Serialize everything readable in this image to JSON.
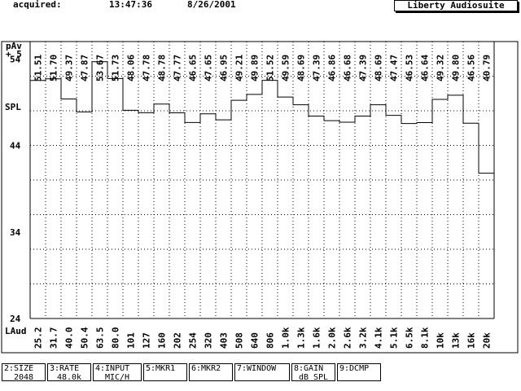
{
  "header": {
    "acquired_label": "acquired:",
    "time": "13:47:36",
    "date": "8/26/2001",
    "app_name": "Liberty Audiosuite"
  },
  "chart_data": {
    "type": "bar",
    "style": "step",
    "top_left_label": "pAv",
    "top_left_sub": "+ 5",
    "ylabel": "SPL",
    "xaxis_label": "LAud",
    "ylim": [
      24,
      56
    ],
    "yticks": [
      "54",
      "44",
      "34",
      "24"
    ],
    "grid": true,
    "categories": [
      "25.2",
      "31.7",
      "40.0",
      "50.4",
      "63.5",
      "80.0",
      "101",
      "127",
      "160",
      "202",
      "254",
      "320",
      "403",
      "508",
      "640",
      "806",
      "1.0k",
      "1.3k",
      "1.6k",
      "2.0k",
      "2.6k",
      "3.2k",
      "4.1k",
      "5.1k",
      "6.5k",
      "8.1k",
      "10k",
      "13k",
      "16k",
      "20k"
    ],
    "value_labels": [
      "51.51",
      "51.70",
      "49.37",
      "47.87",
      "53.67",
      "51.73",
      "48.06",
      "47.78",
      "48.78",
      "47.77",
      "46.65",
      "47.65",
      "46.95",
      "49.21",
      "49.89",
      "51.52",
      "49.59",
      "48.69",
      "47.39",
      "46.86",
      "46.68",
      "47.39",
      "48.69",
      "47.47",
      "46.53",
      "46.64",
      "49.32",
      "49.80",
      "46.56",
      "40.79"
    ],
    "values": [
      51.51,
      51.7,
      49.37,
      47.87,
      53.67,
      51.73,
      48.06,
      47.78,
      48.78,
      47.77,
      46.65,
      47.65,
      46.95,
      49.21,
      49.89,
      51.52,
      49.59,
      48.69,
      47.39,
      46.86,
      46.68,
      47.39,
      48.69,
      47.47,
      46.53,
      46.64,
      49.32,
      49.8,
      46.56,
      40.79
    ]
  },
  "softkeys": [
    {
      "line1": "2:SIZE",
      "line2": "2048"
    },
    {
      "line1": "3:RATE",
      "line2": "48.0k"
    },
    {
      "line1": "4:INPUT",
      "line2": "MIC/H"
    },
    {
      "line1": "5:MKR1",
      "line2": ""
    },
    {
      "line1": "6:MKR2",
      "line2": ""
    },
    {
      "line1": "7:WINDOW",
      "line2": ""
    },
    {
      "line1": "8:GAIN",
      "line2": "dB SPL"
    },
    {
      "line1": "9:DCMP",
      "line2": ""
    }
  ]
}
